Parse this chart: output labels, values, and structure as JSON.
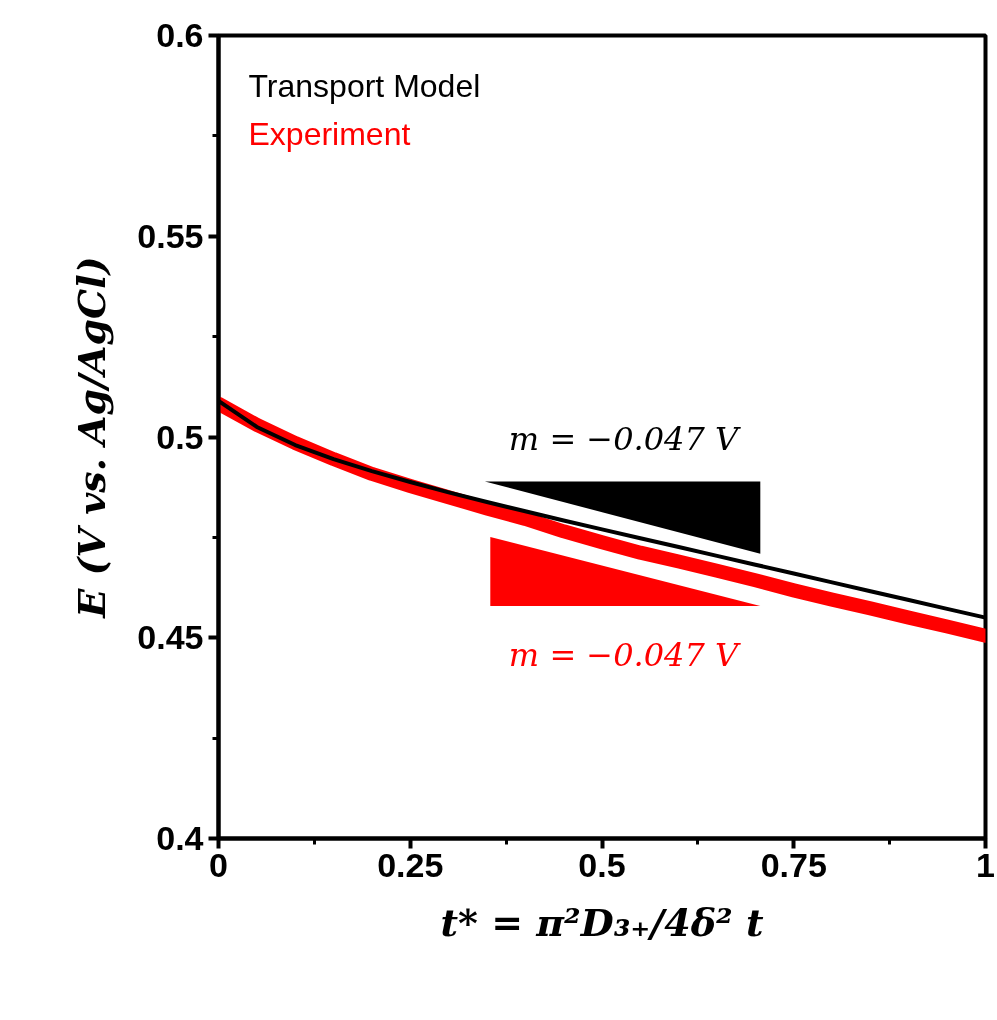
{
  "chart_data": {
    "type": "line",
    "xlabel": "t* = π²D₃₊/4δ² t",
    "ylabel": "E (V vs. Ag/AgCl)",
    "x": [
      0,
      0.05,
      0.1,
      0.15,
      0.2,
      0.25,
      0.3,
      0.35,
      0.4,
      0.45,
      0.5,
      0.55,
      0.6,
      0.65,
      0.7,
      0.75,
      0.8,
      0.85,
      0.9,
      0.95,
      1
    ],
    "series": [
      {
        "name": "Transport Model",
        "color": "#000000",
        "values": [
          0.509,
          0.5025,
          0.498,
          0.4945,
          0.4915,
          0.4888,
          0.4862,
          0.4838,
          0.4815,
          0.4792,
          0.477,
          0.4748,
          0.4726,
          0.4704,
          0.4682,
          0.466,
          0.4638,
          0.4616,
          0.4594,
          0.4572,
          0.455
        ]
      },
      {
        "name": "Experiment",
        "color": "#ff0000",
        "values": [
          0.5083,
          0.503,
          0.4985,
          0.4945,
          0.4908,
          0.4878,
          0.485,
          0.4822,
          0.4796,
          0.4765,
          0.4738,
          0.4712,
          0.469,
          0.4667,
          0.4643,
          0.4618,
          0.4595,
          0.4573,
          0.455,
          0.4528,
          0.4505
        ]
      }
    ],
    "annotations": [
      "m = −0.047 V",
      "m = −0.047 V"
    ],
    "xlim": [
      0,
      1
    ],
    "ylim": [
      0.4,
      0.6
    ],
    "xticks": [
      0,
      0.25,
      0.5,
      0.75,
      1
    ],
    "yticks": [
      0.4,
      0.45,
      0.5,
      0.55,
      0.6
    ],
    "grid": false,
    "legend": "top left",
    "marker": "none",
    "line_style": "solid"
  }
}
